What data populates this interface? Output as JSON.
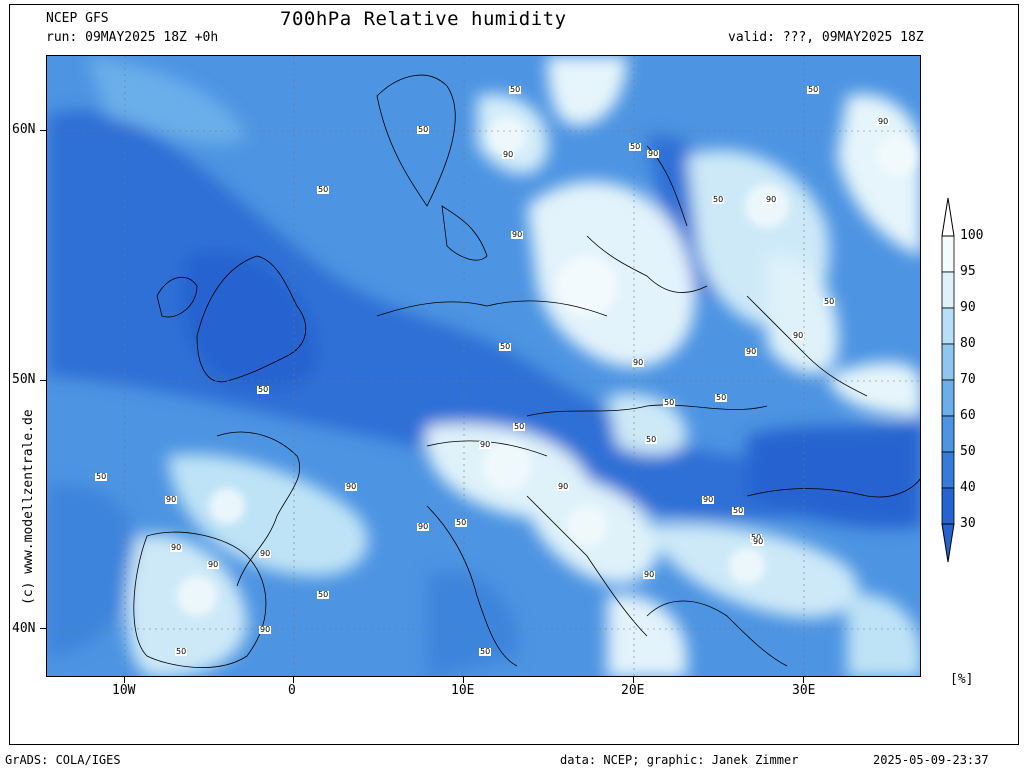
{
  "header": {
    "model": "NCEP GFS",
    "run": "run: 09MAY2025 18Z +0h",
    "title": "700hPa Relative humidity",
    "valid": "valid: ???, 09MAY2025 18Z"
  },
  "credit_vertical": "(c) www.modellzentrale.de",
  "footer": {
    "left": "GrADS: COLA/IGES",
    "data": "data: NCEP; graphic: Janek Zimmer",
    "timestamp": "2025-05-09-23:37"
  },
  "axes": {
    "lat_labels": [
      "60N",
      "50N",
      "40N"
    ],
    "lon_labels": [
      "10W",
      "0",
      "10E",
      "20E",
      "30E"
    ]
  },
  "colorbar": {
    "levels": [
      "100",
      "95",
      "90",
      "80",
      "70",
      "60",
      "50",
      "40",
      "30"
    ],
    "unit": "[%]",
    "colors": [
      "#f4fbfd",
      "#dff2fa",
      "#b7e0f6",
      "#8ec6f0",
      "#6aaeea",
      "#4d94e2",
      "#357cda",
      "#2463d0"
    ]
  },
  "contour_labels": [
    "50",
    "90"
  ]
}
